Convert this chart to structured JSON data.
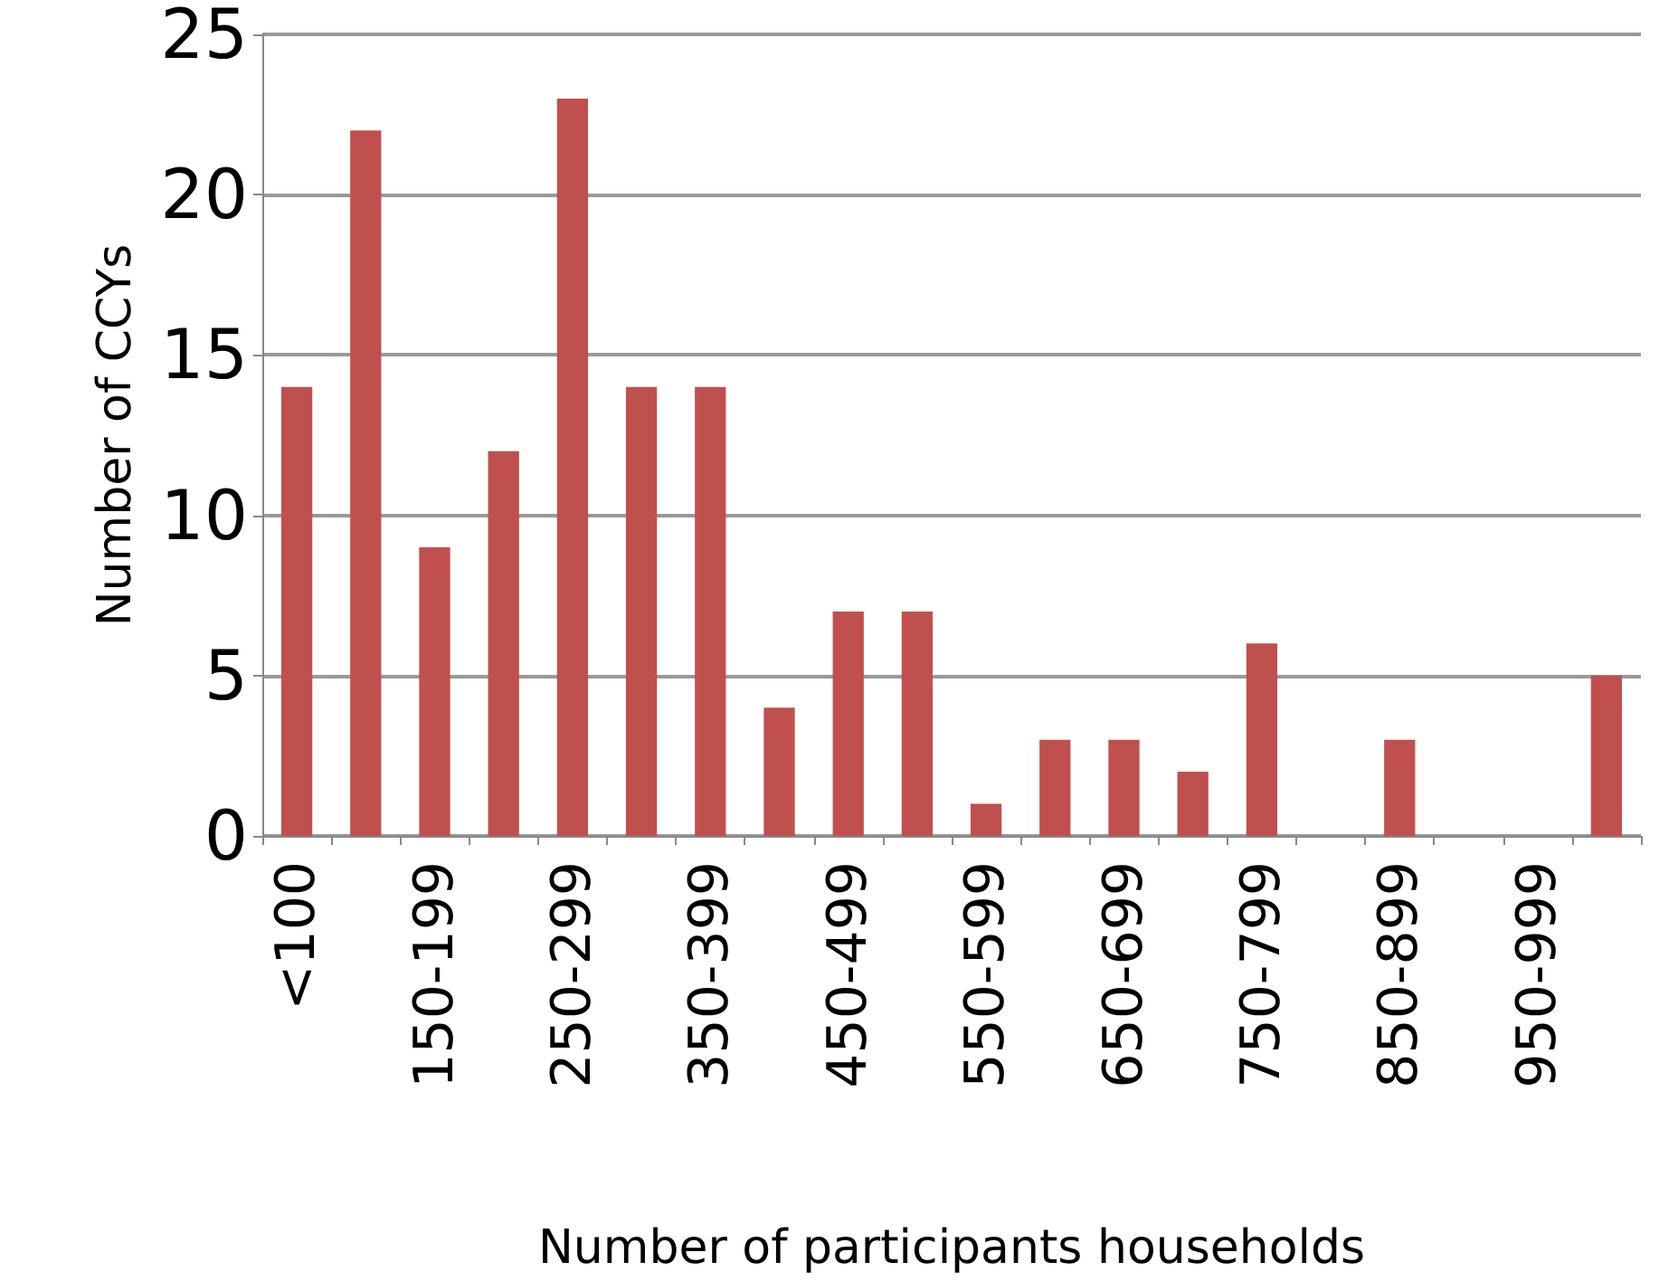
{
  "chart_data": {
    "type": "bar",
    "xlabel": "Number of participants households",
    "ylabel": "Number of CCYs",
    "categories": [
      "<100",
      null,
      "150-199",
      null,
      "250-299",
      null,
      "350-399",
      null,
      "450-499",
      null,
      "550-599",
      null,
      "650-699",
      null,
      "750-799",
      null,
      "850-899",
      null,
      "950-999",
      null
    ],
    "values": [
      14,
      22,
      9,
      12,
      23,
      14,
      14,
      4,
      7,
      7,
      1,
      3,
      3,
      2,
      6,
      0,
      3,
      0,
      0,
      5
    ],
    "color": "#c0504d",
    "ylim": [
      0,
      25
    ],
    "yticks": [
      0,
      5,
      10,
      15,
      20,
      25
    ],
    "grid": "y"
  }
}
